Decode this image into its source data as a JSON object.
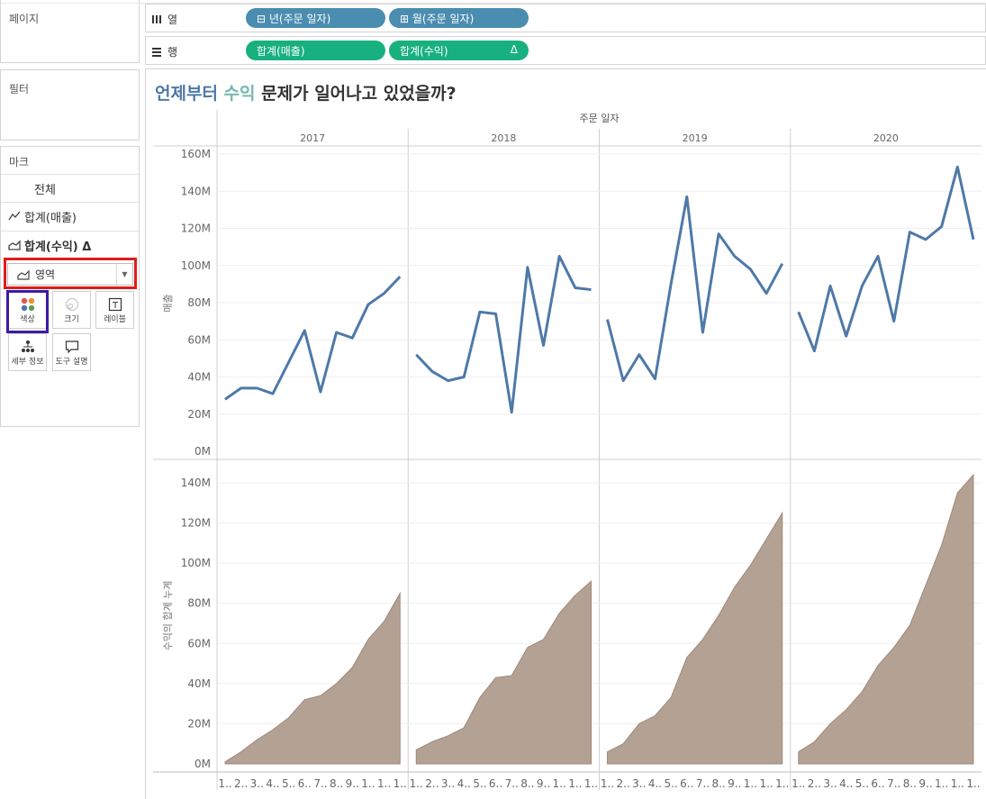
{
  "left_panel": {
    "pages_title": "페이지",
    "filters_title": "필터",
    "marks": {
      "title": "마크",
      "all_label": "전체",
      "items": [
        {
          "label": "합계(매출)",
          "icon": "line-chart-icon"
        },
        {
          "label": "합계(수익) Δ",
          "icon": "area-chart-icon"
        }
      ],
      "mark_type": "영역",
      "tiles": [
        {
          "label": "색상",
          "icon": "color-icon"
        },
        {
          "label": "크기",
          "icon": "size-icon"
        },
        {
          "label": "레이블",
          "icon": "label-icon"
        },
        {
          "label": "세부 정보",
          "icon": "detail-icon"
        },
        {
          "label": "도구 설명",
          "icon": "tooltip-icon"
        }
      ]
    }
  },
  "shelves": {
    "columns": {
      "label": "열",
      "pills": [
        "⊟ 년(주문 일자)",
        "⊞ 월(주문 일자)"
      ]
    },
    "rows": {
      "label": "행",
      "pills": [
        "합계(매출)",
        "합계(수익)"
      ],
      "delta": "Δ"
    }
  },
  "title": {
    "part1": "언제부터",
    "part2": "수익",
    "part3": "문제가 일어나고 있었을까?"
  },
  "colors": {
    "line": "#4e79a7",
    "area": "#b3a193",
    "area_stroke": "#a08a7b",
    "title_blue": "#4e79a7",
    "title_teal": "#76b7b2",
    "pill_blue": "#4a8db0",
    "pill_green": "#19b07f"
  },
  "chart_data": {
    "type": "line",
    "header": "주문 일자",
    "years": [
      "2017",
      "2018",
      "2019",
      "2020"
    ],
    "x_tick_labels": [
      "1..",
      "2..",
      "3..",
      "4..",
      "5..",
      "6..",
      "7..",
      "8..",
      "9..",
      "1..",
      "1..",
      "1.."
    ],
    "panes": [
      {
        "ylabel": "매출",
        "ylim": [
          0,
          160
        ],
        "yticks": [
          "0M",
          "20M",
          "40M",
          "60M",
          "80M",
          "100M",
          "120M",
          "140M",
          "160M"
        ],
        "type": "line",
        "series": [
          {
            "year": "2017",
            "values": [
              28,
              34,
              34,
              31,
              48,
              65,
              32,
              64,
              61,
              79,
              85,
              94
            ]
          },
          {
            "year": "2018",
            "values": [
              52,
              43,
              38,
              40,
              75,
              74,
              21,
              99,
              57,
              105,
              88,
              87
            ]
          },
          {
            "year": "2019",
            "values": [
              71,
              38,
              52,
              39,
              90,
              137,
              64,
              117,
              105,
              98,
              85,
              101
            ]
          },
          {
            "year": "2020",
            "values": [
              75,
              54,
              89,
              62,
              89,
              105,
              70,
              118,
              114,
              121,
              153,
              114
            ]
          }
        ]
      },
      {
        "ylabel": "수익의 합계 누계",
        "ylim": [
          0,
          150
        ],
        "yticks": [
          "0M",
          "20M",
          "40M",
          "60M",
          "80M",
          "100M",
          "120M",
          "140M"
        ],
        "type": "area",
        "series": [
          {
            "year": "2017",
            "values": [
              1,
              6,
              12,
              17,
              23,
              32,
              34,
              40,
              48,
              62,
              71,
              85
            ]
          },
          {
            "year": "2018",
            "values": [
              7,
              11,
              14,
              18,
              33,
              43,
              44,
              58,
              62,
              75,
              84,
              91
            ]
          },
          {
            "year": "2019",
            "values": [
              6,
              10,
              20,
              24,
              33,
              53,
              62,
              74,
              88,
              99,
              112,
              125
            ]
          },
          {
            "year": "2020",
            "values": [
              6,
              11,
              20,
              27,
              36,
              49,
              58,
              69,
              89,
              109,
              135,
              144
            ]
          }
        ]
      }
    ]
  }
}
